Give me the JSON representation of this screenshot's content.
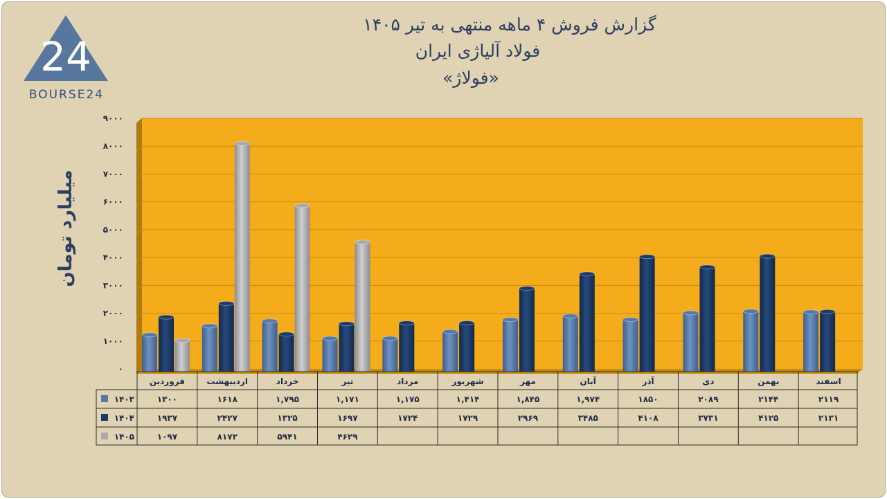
{
  "logo": {
    "text": "BOURSE24",
    "mark": "24"
  },
  "title": {
    "line1": "گزارش  فروش ۴ ماهه منتهی به تیر ۱۴۰۵",
    "line2": "فولاد آلیاژی ایران",
    "line3": "«فولاژ»"
  },
  "colors": {
    "plot_bg": "#f4ac1a",
    "y1403": "#5478a8",
    "y1404": "#1b3a66",
    "y1405": "#a9a9ab"
  },
  "chart_data": {
    "type": "bar",
    "ylabel": "میلیارد تومان",
    "ylim": [
      0,
      9000
    ],
    "yticks": [
      {
        "v": 0,
        "t": "۰"
      },
      {
        "v": 1000,
        "t": "۱۰۰۰"
      },
      {
        "v": 2000,
        "t": "۲۰۰۰"
      },
      {
        "v": 3000,
        "t": "۳۰۰۰"
      },
      {
        "v": 4000,
        "t": "۴۰۰۰"
      },
      {
        "v": 5000,
        "t": "۵۰۰۰"
      },
      {
        "v": 6000,
        "t": "۶۰۰۰"
      },
      {
        "v": 7000,
        "t": "۷۰۰۰"
      },
      {
        "v": 8000,
        "t": "۸۰۰۰"
      },
      {
        "v": 9000,
        "t": "۹۰۰۰"
      }
    ],
    "categories": [
      "فروردین",
      "اردیبهشت",
      "خرداد",
      "تیر",
      "مرداد",
      "شهریور",
      "مهر",
      "آبان",
      "آذر",
      "دی",
      "بهمن",
      "اسفند"
    ],
    "grid": true,
    "legend": "table-bottom",
    "series": [
      {
        "name": "۱۴۰۳",
        "color": "#5478a8",
        "values": [
          1300,
          1618,
          1795,
          1171,
          1175,
          1414,
          1845,
          1974,
          1850,
          2089,
          2144,
          2119
        ],
        "labels": [
          "۱۳۰۰",
          "۱۶۱۸",
          "۱,۷۹۵",
          "۱,۱۷۱",
          "۱,۱۷۵",
          "۱,۴۱۴",
          "۱,۸۴۵",
          "۱,۹۷۴",
          "۱۸۵۰",
          "۲۰۸۹",
          "۲۱۴۴",
          "۲۱۱۹"
        ]
      },
      {
        "name": "۱۴۰۴",
        "color": "#1b3a66",
        "values": [
          1937,
          2427,
          1325,
          1697,
          1724,
          1729,
          2969,
          3485,
          4108,
          3731,
          4125,
          2131
        ],
        "labels": [
          "۱۹۳۷",
          "۲۴۲۷",
          "۱۳۲۵",
          "۱۶۹۷",
          "۱۷۲۴",
          "۱۷۲۹",
          "۲۹۶۹",
          "۳۴۸۵",
          "۴۱۰۸",
          "۳۷۳۱",
          "۴۱۲۵",
          "۲۱۳۱"
        ]
      },
      {
        "name": "۱۴۰۵",
        "color": "#a9a9ab",
        "values": [
          1097,
          8172,
          5941,
          4629,
          null,
          null,
          null,
          null,
          null,
          null,
          null,
          null
        ],
        "labels": [
          "۱۰۹۷",
          "۸۱۷۲",
          "۵۹۴۱",
          "۴۶۲۹",
          "",
          "",
          "",
          "",
          "",
          "",
          "",
          ""
        ]
      }
    ]
  }
}
